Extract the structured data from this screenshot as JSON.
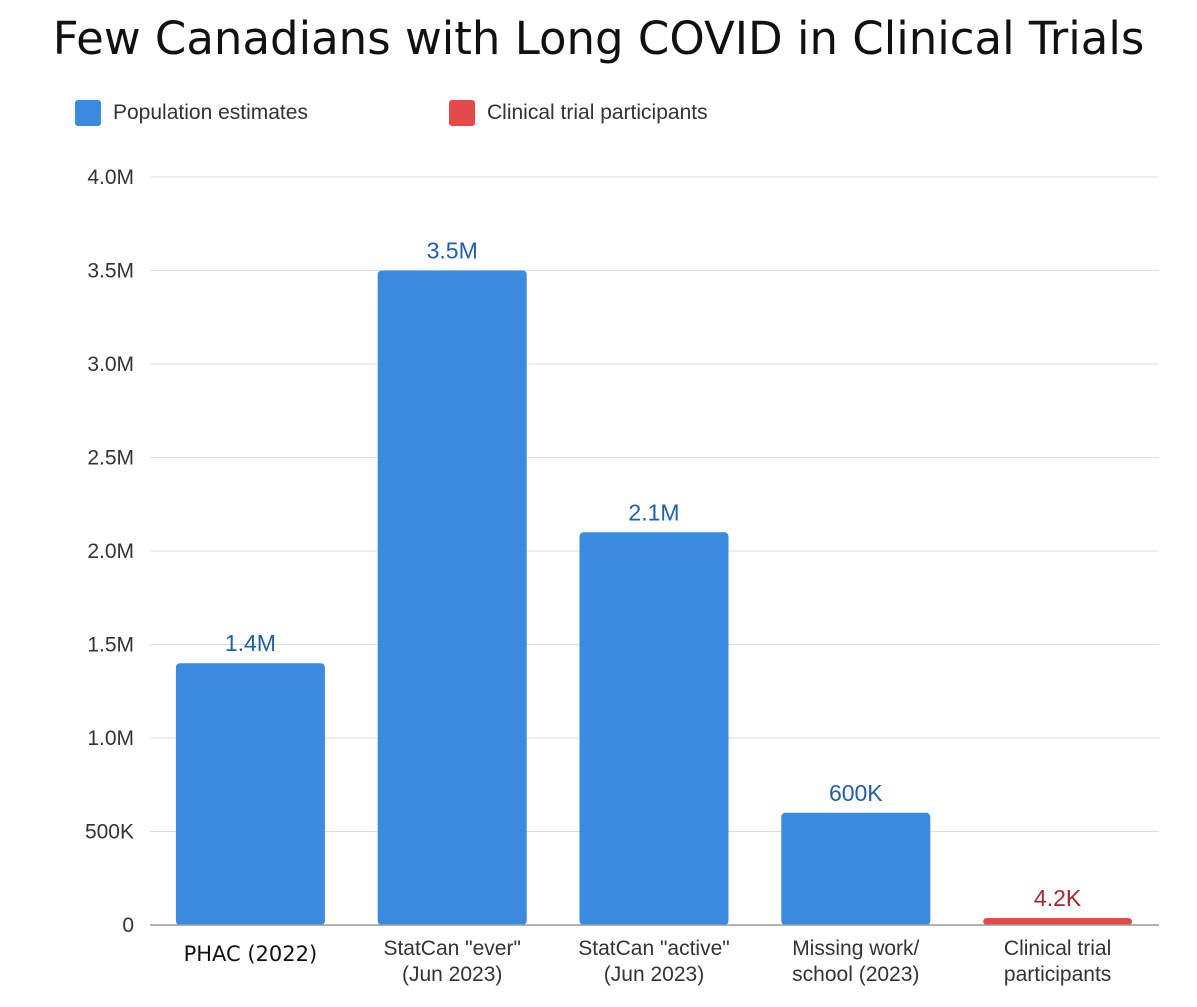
{
  "chart_data": {
    "type": "bar",
    "title": "Few Canadians with Long COVID in Clinical Trials",
    "xlabel": "",
    "ylabel": "",
    "ylim": [
      0,
      4000000
    ],
    "yticks": [
      {
        "value": 0,
        "label": "0"
      },
      {
        "value": 500000,
        "label": "500K"
      },
      {
        "value": 1000000,
        "label": "1.0M"
      },
      {
        "value": 1500000,
        "label": "1.5M"
      },
      {
        "value": 2000000,
        "label": "2.0M"
      },
      {
        "value": 2500000,
        "label": "2.5M"
      },
      {
        "value": 3000000,
        "label": "3.0M"
      },
      {
        "value": 3500000,
        "label": "3.5M"
      },
      {
        "value": 4000000,
        "label": "4.0M"
      }
    ],
    "grid": true,
    "legend_position": "top-left",
    "series": [
      {
        "name": "Population estimates",
        "color": "#3a8ae0",
        "label_color": "#1f5fa6"
      },
      {
        "name": "Clinical trial participants",
        "color": "#e34b4b",
        "label_color": "#a3272b"
      }
    ],
    "bars": [
      {
        "category": [
          "PHAC (2022)"
        ],
        "value": 1400000,
        "label": "1.4M",
        "series": 0
      },
      {
        "category": [
          "StatCan \"ever\"",
          "(Jun 2023)"
        ],
        "value": 3500000,
        "label": "3.5M",
        "series": 0
      },
      {
        "category": [
          "StatCan \"active\"",
          "(Jun 2023)"
        ],
        "value": 2100000,
        "label": "2.1M",
        "series": 0
      },
      {
        "category": [
          "Missing work/",
          "school (2023)"
        ],
        "value": 600000,
        "label": "600K",
        "series": 0
      },
      {
        "category": [
          "Clinical trial",
          "participants"
        ],
        "value": 4200,
        "label": "4.2K",
        "series": 1
      }
    ]
  }
}
